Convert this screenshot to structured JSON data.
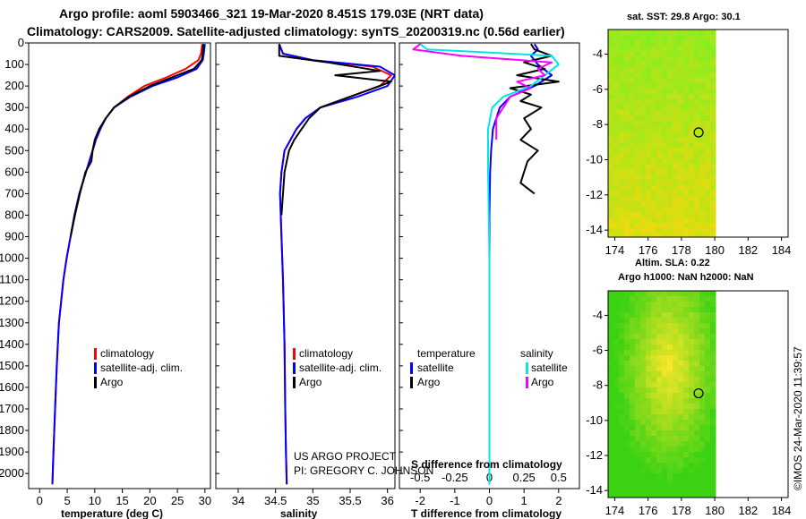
{
  "header": {
    "line1": "Argo profile: aoml 5903466_321 19-Mar-2020 8.451S 179.03E (NRT data)",
    "line2": "Climatology: CARS2009. Satellite-adjusted climatology: synTS_20200319.nc (0.56d earlier)"
  },
  "colors": {
    "climatology": "#ff0000",
    "satellite": "#0000ff",
    "argo": "#000000",
    "sal_satellite": "#00e5e5",
    "sal_argo": "#ff00ff"
  },
  "icons": {
    "profile_marker": "circle-icon"
  },
  "chart_data": [
    {
      "type": "line",
      "xlabel": "temperature (deg C)",
      "ylabel": "",
      "xlim": [
        -2,
        31
      ],
      "ylim": [
        2070,
        0
      ],
      "xticks": [
        "0",
        "5",
        "10",
        "15",
        "20",
        "25",
        "30"
      ],
      "yticks": [
        "0",
        "100",
        "200",
        "300",
        "400",
        "500",
        "600",
        "700",
        "800",
        "900",
        "1000",
        "1100",
        "1200",
        "1300",
        "1400",
        "1500",
        "1600",
        "1700",
        "1800",
        "1900",
        "2000"
      ],
      "legend": {
        "position": "lower-right",
        "items": [
          "climatology",
          "satellite-adj. clim.",
          "Argo"
        ]
      },
      "series": [
        {
          "name": "climatology",
          "x": [
            29.5,
            29.3,
            28.8,
            26.5,
            23,
            19,
            16,
            13.5,
            12,
            11,
            10.2,
            9.6,
            8.4,
            7.2,
            6.3,
            5.6,
            4.9,
            4.3,
            3.9,
            3.5,
            3.1,
            2.8,
            2.5,
            2.3
          ],
          "y": [
            5,
            50,
            80,
            120,
            160,
            200,
            250,
            300,
            350,
            400,
            450,
            500,
            600,
            700,
            800,
            900,
            1000,
            1100,
            1200,
            1300,
            1500,
            1700,
            1900,
            2050
          ]
        },
        {
          "name": "satellite-adj. clim.",
          "x": [
            30,
            29.8,
            29.6,
            28.5,
            25,
            20.5,
            16.5,
            13.5,
            12,
            11,
            10.2,
            9.6,
            8.4,
            7.2,
            6.3,
            5.6,
            4.9,
            4.3,
            3.9,
            3.5,
            3.1,
            2.8,
            2.5,
            2.3
          ],
          "y": [
            5,
            50,
            80,
            120,
            160,
            200,
            250,
            300,
            350,
            400,
            450,
            500,
            600,
            700,
            800,
            900,
            1000,
            1100,
            1200,
            1300,
            1500,
            1700,
            1900,
            2050
          ]
        },
        {
          "name": "Argo",
          "x": [
            29.7,
            29.6,
            29.4,
            28,
            24,
            20,
            16.2,
            13.5,
            12,
            10.8,
            10,
            9.6,
            9.4,
            8.3,
            7.3,
            6.4,
            5.6
          ],
          "y": [
            5,
            50,
            80,
            120,
            160,
            200,
            250,
            300,
            350,
            400,
            450,
            500,
            550,
            600,
            700,
            800,
            900
          ]
        }
      ]
    },
    {
      "type": "line",
      "xlabel": "salinity",
      "ylabel": "",
      "xlim": [
        33.7,
        36.1
      ],
      "ylim": [
        2070,
        0
      ],
      "xticks": [
        "34",
        "34.5",
        "35",
        "35.5",
        "36"
      ],
      "legend": {
        "position": "lower-right",
        "items": [
          "climatology",
          "satellite-adj. clim.",
          "Argo"
        ]
      },
      "annotation": [
        "US ARGO PROJECT",
        "PI: GREGORY C. JOHNSON"
      ],
      "series": [
        {
          "name": "climatology",
          "x": [
            34.55,
            34.6,
            35,
            35.8,
            36.05,
            35.9,
            35.5,
            35.1,
            34.9,
            34.78,
            34.7,
            34.62,
            34.58,
            34.56,
            34.58,
            34.6,
            34.62,
            34.63,
            34.64,
            34.65
          ],
          "y": [
            5,
            50,
            80,
            110,
            150,
            200,
            250,
            300,
            350,
            400,
            450,
            500,
            600,
            700,
            900,
            1100,
            1400,
            1700,
            1900,
            2050
          ]
        },
        {
          "name": "satellite-adj. clim.",
          "x": [
            34.55,
            34.6,
            35,
            35.9,
            36.1,
            36,
            35.6,
            35.1,
            34.9,
            34.78,
            34.7,
            34.62,
            34.58,
            34.56,
            34.58,
            34.6,
            34.62,
            34.63,
            34.64,
            34.65
          ],
          "y": [
            5,
            50,
            80,
            110,
            150,
            200,
            250,
            300,
            350,
            400,
            450,
            500,
            600,
            700,
            900,
            1100,
            1400,
            1700,
            1900,
            2050
          ]
        },
        {
          "name": "Argo",
          "x": [
            34.55,
            34.55,
            35.2,
            35.9,
            35.3,
            36.05,
            35.5,
            35.1,
            34.95,
            34.85,
            34.75,
            34.68,
            34.62,
            34.6,
            34.58
          ],
          "y": [
            5,
            60,
            90,
            130,
            150,
            180,
            250,
            300,
            350,
            400,
            450,
            500,
            600,
            700,
            800
          ]
        }
      ]
    },
    {
      "type": "line",
      "xlabel": "T difference from climatology",
      "ylabel": "",
      "xlim": [
        -2.6,
        2.6
      ],
      "ylim": [
        2070,
        0
      ],
      "xticks": [
        "-2",
        "-1",
        "0",
        "1",
        "2"
      ],
      "top_axis": {
        "label": "S difference from climatology",
        "ticks": [
          "-0.5",
          "-0.25",
          "0",
          "0.25",
          "0.5"
        ]
      },
      "legend": {
        "position": "lower-center",
        "items": [
          {
            "group": "temperature",
            "entries": [
              "satellite",
              "Argo"
            ]
          },
          {
            "group": "salinity",
            "entries": [
              "satellite",
              "Argo"
            ]
          }
        ]
      },
      "series": [
        {
          "name": "temperature satellite",
          "x": [
            1.3,
            1.4,
            1.2,
            1.4,
            1.8,
            1.3,
            0.6,
            0.3,
            0.2,
            0.1,
            0.05,
            0.02,
            0,
            0,
            0,
            0,
            0
          ],
          "y": [
            5,
            30,
            60,
            100,
            150,
            200,
            250,
            300,
            350,
            400,
            500,
            600,
            800,
            1000,
            1400,
            1800,
            2050
          ]
        },
        {
          "name": "temperature Argo",
          "x": [
            1.2,
            1.3,
            1.8,
            1.0,
            1.6,
            0.8,
            2.0,
            0.6,
            1.2,
            0.9,
            1.5,
            1.0,
            1.2,
            0.9,
            1.4,
            1.1,
            0.9,
            1.3
          ],
          "y": [
            5,
            30,
            60,
            90,
            120,
            150,
            180,
            210,
            240,
            270,
            300,
            350,
            400,
            450,
            500,
            550,
            650,
            700
          ]
        },
        {
          "name": "salinity satellite",
          "x": [
            -0.5,
            -0.45,
            0.45,
            0.5,
            0.4,
            0.3,
            0.1,
            0.02,
            -0.01,
            -0.01,
            0,
            0,
            0
          ],
          "y": [
            5,
            30,
            60,
            100,
            150,
            200,
            250,
            300,
            400,
            600,
            1000,
            1500,
            2050
          ]
        },
        {
          "name": "salinity Argo",
          "x": [
            -0.5,
            -0.55,
            -0.2,
            0.45,
            0.35,
            0.4,
            0.2,
            0.3,
            0.15,
            0.1,
            0.05,
            0.05
          ],
          "y": [
            5,
            30,
            60,
            90,
            120,
            150,
            180,
            210,
            250,
            300,
            350,
            450
          ]
        }
      ]
    },
    {
      "type": "heatmap",
      "title": "sat. SST: 29.8 Argo: 30.1",
      "xticks": [
        "174",
        "176",
        "178",
        "180",
        "182",
        "184"
      ],
      "yticks": [
        "-4",
        "-6",
        "-8",
        "-10",
        "-12",
        "-14"
      ],
      "xlim": [
        173.6,
        184.4
      ],
      "ylim": [
        -14.4,
        -2.6
      ],
      "data_extent_x": [
        173.6,
        180
      ],
      "marker": {
        "lon": 179.03,
        "lat": -8.451
      }
    },
    {
      "type": "heatmap",
      "title": "Altim. SLA: 0.22",
      "subtitle": "Argo h1000: NaN h2000: NaN",
      "xticks": [
        "174",
        "176",
        "178",
        "180",
        "182",
        "184"
      ],
      "yticks": [
        "-4",
        "-6",
        "-8",
        "-10",
        "-12",
        "-14"
      ],
      "xlim": [
        173.6,
        184.4
      ],
      "ylim": [
        -14.4,
        -2.6
      ],
      "data_extent_x": [
        173.6,
        180
      ],
      "marker": {
        "lon": 179.03,
        "lat": -8.451
      }
    }
  ],
  "footer": {
    "credit": "©IMOS 24-Mar-2020 11:39:57"
  }
}
